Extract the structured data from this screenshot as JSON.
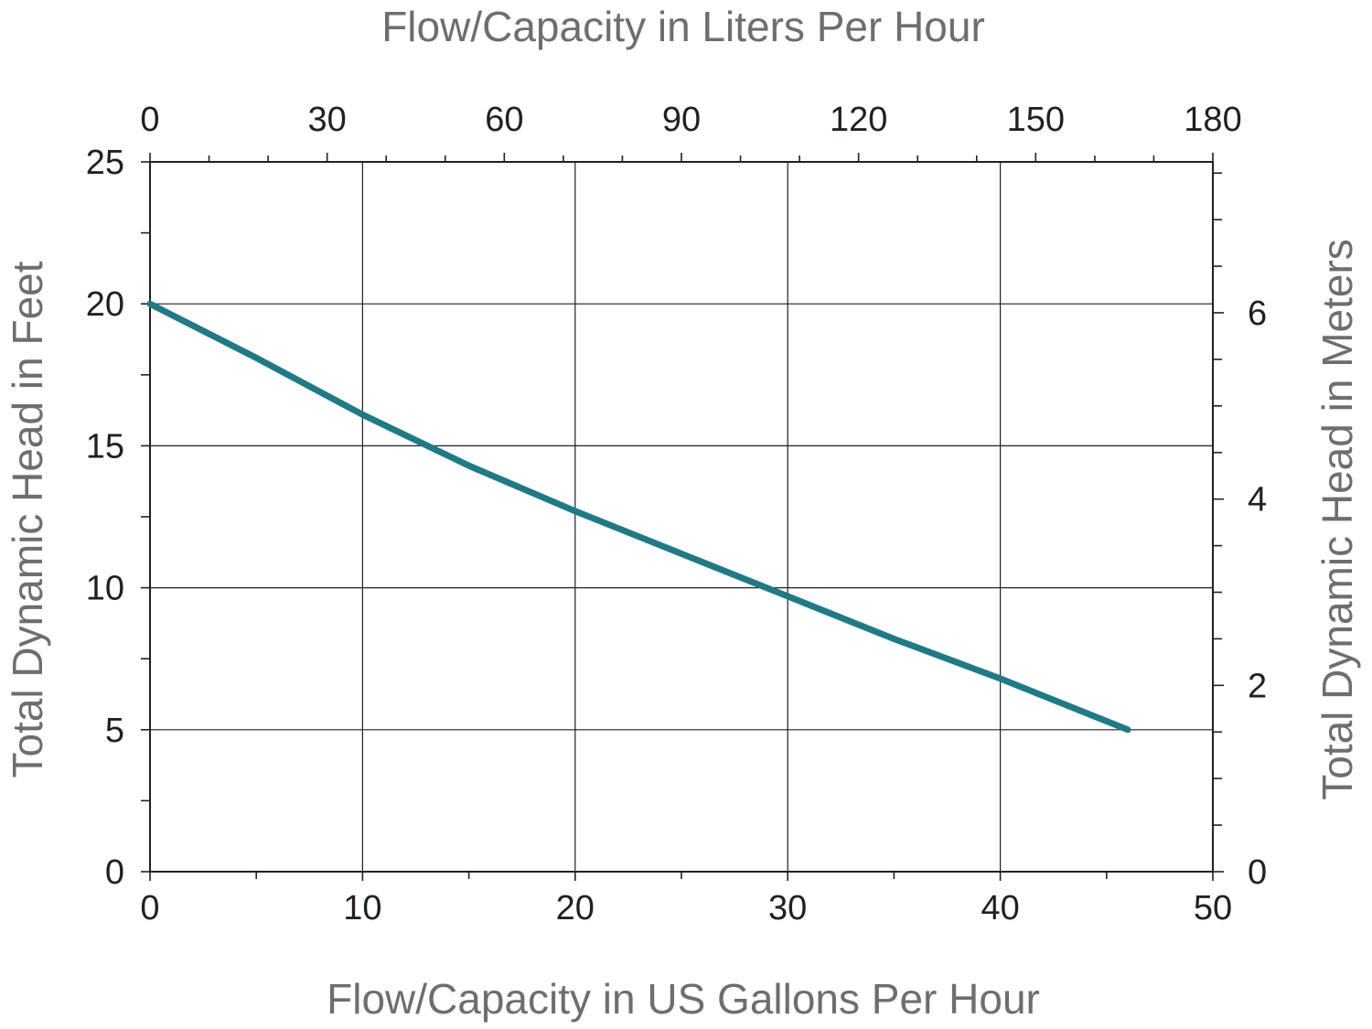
{
  "chart_data": {
    "type": "line",
    "title": "",
    "xlabel": "Flow/Capacity in US Gallons Per Hour",
    "x2label": "Flow/Capacity in Liters Per Hour",
    "ylabel": "Total Dynamic Head in Feet",
    "y2label": "Total Dynamic Head in Meters",
    "xlim": [
      0,
      50
    ],
    "ylim": [
      0,
      25
    ],
    "x2lim": [
      0,
      180
    ],
    "y2lim": [
      0,
      7.62
    ],
    "x_ticks": [
      0,
      10,
      20,
      30,
      40,
      50
    ],
    "y_ticks": [
      0,
      5,
      10,
      15,
      20,
      25
    ],
    "x2_ticks": [
      0,
      30,
      60,
      90,
      120,
      150,
      180
    ],
    "y2_ticks": [
      0,
      2,
      4,
      6
    ],
    "grid": true,
    "legend": "none",
    "series": [
      {
        "color": "#1f7a85",
        "x": [
          0,
          5,
          10,
          15,
          20,
          25,
          30,
          35,
          40,
          46
        ],
        "y": [
          20,
          18.1,
          16.1,
          14.3,
          12.7,
          11.2,
          9.7,
          8.2,
          6.8,
          5.0
        ]
      }
    ]
  }
}
